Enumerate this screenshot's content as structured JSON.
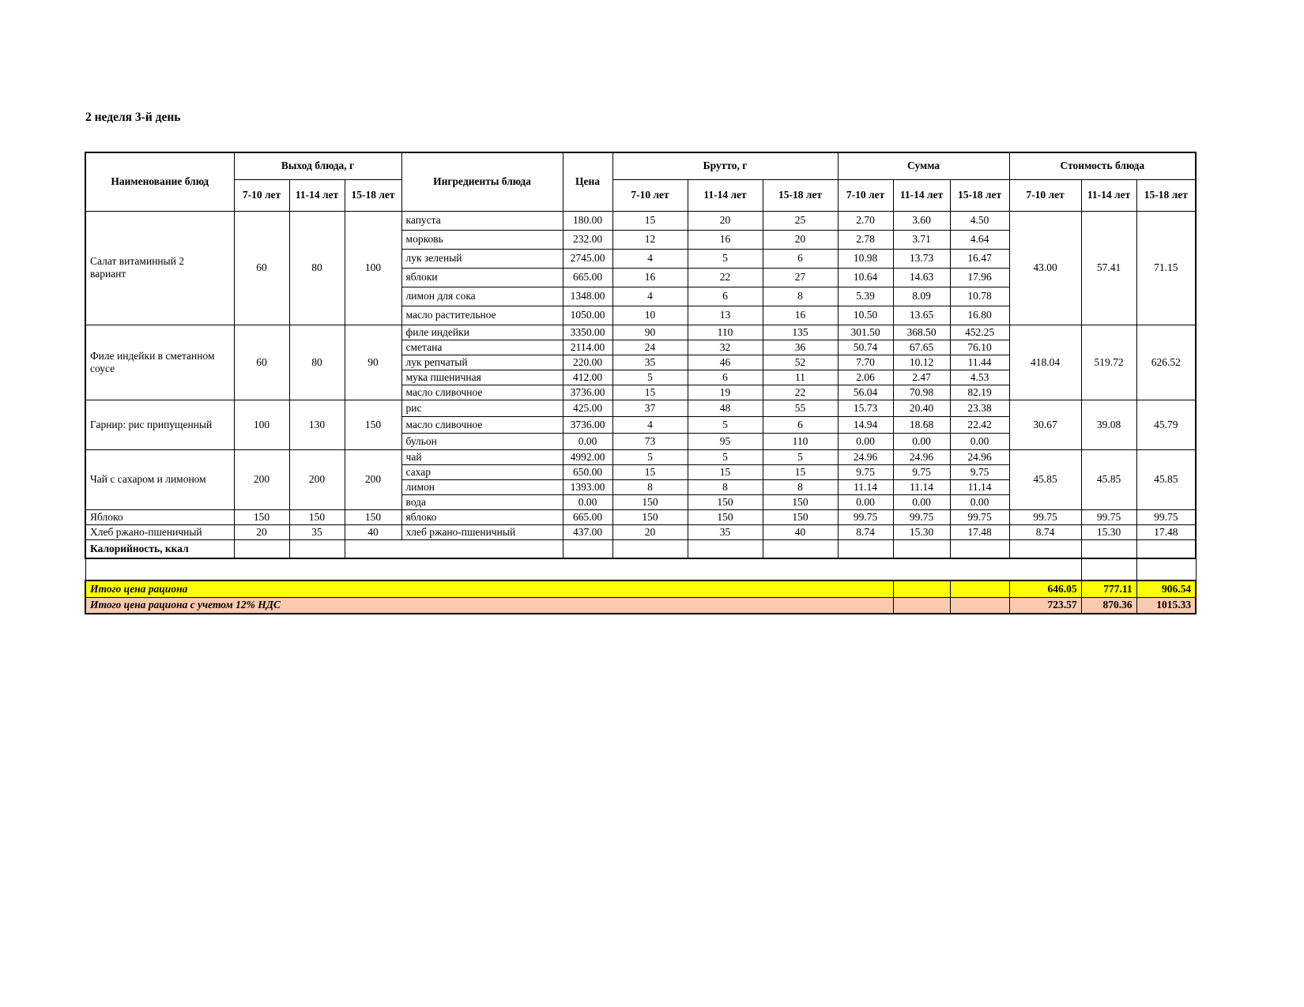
{
  "title": "2 неделя 3-й день",
  "colors": {
    "total_row_bg": "#FFFF00",
    "total_vat_row_bg": "#F8CBAD"
  },
  "table": {
    "headers": {
      "name": "Наименование блюд",
      "output_group": "Выход блюда, г",
      "ingredients": "Ингредиенты блюда",
      "price": "Цена",
      "brutto_group": "Брутто, г",
      "sum_group": "Сумма",
      "cost_group": "Стоимость блюда",
      "age": [
        "7-10 лет",
        "11-14 лет",
        "15-18 лет"
      ]
    },
    "dishes": [
      {
        "name": "Салат витаминный 2\nвариант",
        "output": [
          "60",
          "80",
          "100"
        ],
        "cost": [
          "43.00",
          "57.41",
          "71.15"
        ],
        "ingredients": [
          {
            "name": "капуста",
            "price": "180.00",
            "brutto": [
              "15",
              "20",
              "25"
            ],
            "sum": [
              "2.70",
              "3.60",
              "4.50"
            ]
          },
          {
            "name": "морковь",
            "price": "232.00",
            "brutto": [
              "12",
              "16",
              "20"
            ],
            "sum": [
              "2.78",
              "3.71",
              "4.64"
            ]
          },
          {
            "name": "лук зеленый",
            "price": "2745.00",
            "brutto": [
              "4",
              "5",
              "6"
            ],
            "sum": [
              "10.98",
              "13.73",
              "16.47"
            ]
          },
          {
            "name": "яблоки",
            "price": "665.00",
            "brutto": [
              "16",
              "22",
              "27"
            ],
            "sum": [
              "10.64",
              "14.63",
              "17.96"
            ]
          },
          {
            "name": "лимон для сока",
            "price": "1348.00",
            "brutto": [
              "4",
              "6",
              "8"
            ],
            "sum": [
              "5.39",
              "8.09",
              "10.78"
            ]
          },
          {
            "name": "масло растительное",
            "price": "1050.00",
            "brutto": [
              "10",
              "13",
              "16"
            ],
            "sum": [
              "10.50",
              "13.65",
              "16.80"
            ]
          }
        ]
      },
      {
        "name": "Филе индейки в сметанном\nсоусе",
        "output": [
          "60",
          "80",
          "90"
        ],
        "cost": [
          "418.04",
          "519.72",
          "626.52"
        ],
        "ingredients": [
          {
            "name": "филе индейки",
            "price": "3350.00",
            "brutto": [
              "90",
              "110",
              "135"
            ],
            "sum": [
              "301.50",
              "368.50",
              "452.25"
            ]
          },
          {
            "name": "сметана",
            "price": "2114.00",
            "brutto": [
              "24",
              "32",
              "36"
            ],
            "sum": [
              "50.74",
              "67.65",
              "76.10"
            ]
          },
          {
            "name": "лук репчатый",
            "price": "220.00",
            "brutto": [
              "35",
              "46",
              "52"
            ],
            "sum": [
              "7.70",
              "10.12",
              "11.44"
            ]
          },
          {
            "name": "мука пшеничная",
            "price": "412.00",
            "brutto": [
              "5",
              "6",
              "11"
            ],
            "sum": [
              "2.06",
              "2.47",
              "4.53"
            ]
          },
          {
            "name": "масло сливочное",
            "price": "3736.00",
            "brutto": [
              "15",
              "19",
              "22"
            ],
            "sum": [
              "56.04",
              "70.98",
              "82.19"
            ]
          }
        ]
      },
      {
        "name": "Гарнир: рис припущенный",
        "output": [
          "100",
          "130",
          "150"
        ],
        "cost": [
          "30.67",
          "39.08",
          "45.79"
        ],
        "ingredients": [
          {
            "name": "рис",
            "price": "425.00",
            "brutto": [
              "37",
              "48",
              "55"
            ],
            "sum": [
              "15.73",
              "20.40",
              "23.38"
            ]
          },
          {
            "name": "масло сливочное",
            "price": "3736.00",
            "brutto": [
              "4",
              "5",
              "6"
            ],
            "sum": [
              "14.94",
              "18.68",
              "22.42"
            ]
          },
          {
            "name": "бульон",
            "price": "0.00",
            "brutto": [
              "73",
              "95",
              "110"
            ],
            "sum": [
              "0.00",
              "0.00",
              "0.00"
            ]
          }
        ]
      },
      {
        "name": "Чай с сахаром и лимоном",
        "output": [
          "200",
          "200",
          "200"
        ],
        "cost": [
          "45.85",
          "45.85",
          "45.85"
        ],
        "ingredients": [
          {
            "name": "чай",
            "price": "4992.00",
            "brutto": [
              "5",
              "5",
              "5"
            ],
            "sum": [
              "24.96",
              "24.96",
              "24.96"
            ]
          },
          {
            "name": "сахар",
            "price": "650.00",
            "brutto": [
              "15",
              "15",
              "15"
            ],
            "sum": [
              "9.75",
              "9.75",
              "9.75"
            ]
          },
          {
            "name": "лимон",
            "price": "1393.00",
            "brutto": [
              "8",
              "8",
              "8"
            ],
            "sum": [
              "11.14",
              "11.14",
              "11.14"
            ]
          },
          {
            "name": "вода",
            "price": "0.00",
            "brutto": [
              "150",
              "150",
              "150"
            ],
            "sum": [
              "0.00",
              "0.00",
              "0.00"
            ]
          }
        ]
      },
      {
        "name": "Яблоко",
        "output": [
          "150",
          "150",
          "150"
        ],
        "cost": [
          "99.75",
          "99.75",
          "99.75"
        ],
        "ingredients": [
          {
            "name": "яблоко",
            "price": "665.00",
            "brutto": [
              "150",
              "150",
              "150"
            ],
            "sum": [
              "99.75",
              "99.75",
              "99.75"
            ]
          }
        ]
      },
      {
        "name": "Хлеб ржано-пшеничный",
        "output": [
          "20",
          "35",
          "40"
        ],
        "cost": [
          "8.74",
          "15.30",
          "17.48"
        ],
        "ingredients": [
          {
            "name": "хлеб ржано-пшеничный",
            "price": "437.00",
            "brutto": [
              "20",
              "35",
              "40"
            ],
            "sum": [
              "8.74",
              "15.30",
              "17.48"
            ]
          }
        ]
      }
    ],
    "calories_label": "Калорийность, ккал",
    "totals": [
      {
        "label": "Итого цена рациона",
        "values": [
          "646.05",
          "777.11",
          "906.54"
        ]
      },
      {
        "label": "Итого цена рациона с учетом 12% НДС",
        "values": [
          "723.57",
          "870.36",
          "1015.33"
        ]
      }
    ]
  }
}
